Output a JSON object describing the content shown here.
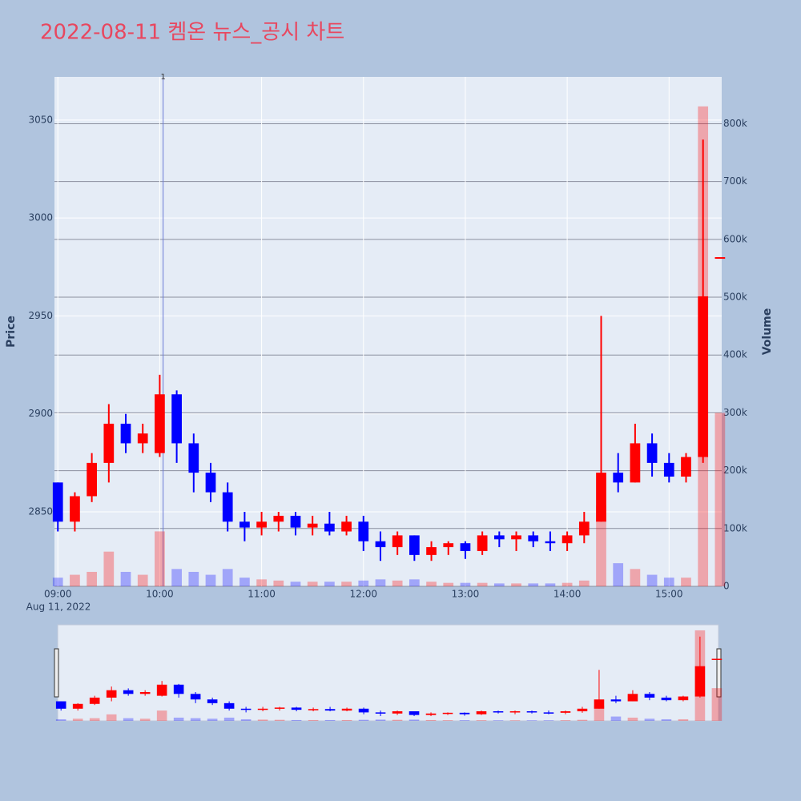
{
  "chart_data": {
    "type": "candlestick",
    "title": "2022-08-11 켐온 뉴스_공시 차트",
    "ylabel": "Price",
    "y2label": "Volume",
    "x_date_label": "Aug 11, 2022",
    "x": [
      "09:00",
      "09:10",
      "09:20",
      "09:30",
      "09:40",
      "09:50",
      "10:00",
      "10:10",
      "10:20",
      "10:30",
      "10:40",
      "10:50",
      "11:00",
      "11:10",
      "11:20",
      "11:30",
      "11:40",
      "11:50",
      "12:00",
      "12:10",
      "12:20",
      "12:30",
      "12:40",
      "12:50",
      "13:00",
      "13:10",
      "13:20",
      "13:30",
      "13:40",
      "13:50",
      "14:00",
      "14:10",
      "14:20",
      "14:30",
      "14:40",
      "14:50",
      "15:00",
      "15:10",
      "15:20",
      "15:30"
    ],
    "open": [
      2865,
      2845,
      2858,
      2875,
      2895,
      2885,
      2880,
      2910,
      2885,
      2870,
      2860,
      2845,
      2842,
      2845,
      2848,
      2842,
      2844,
      2840,
      2845,
      2835,
      2832,
      2838,
      2828,
      2832,
      2834,
      2830,
      2838,
      2836,
      2838,
      2835,
      2834,
      2838,
      2845,
      2870,
      2865,
      2885,
      2875,
      2868,
      2878,
      2980
    ],
    "high": [
      2865,
      2860,
      2880,
      2905,
      2900,
      2895,
      2920,
      2912,
      2890,
      2875,
      2865,
      2850,
      2850,
      2850,
      2850,
      2848,
      2850,
      2848,
      2848,
      2840,
      2840,
      2838,
      2835,
      2835,
      2835,
      2840,
      2840,
      2840,
      2840,
      2840,
      2840,
      2850,
      2950,
      2880,
      2895,
      2890,
      2880,
      2880,
      3040,
      2980
    ],
    "low": [
      2840,
      2840,
      2855,
      2865,
      2880,
      2880,
      2878,
      2875,
      2860,
      2855,
      2840,
      2835,
      2838,
      2840,
      2838,
      2838,
      2838,
      2838,
      2830,
      2825,
      2828,
      2825,
      2825,
      2828,
      2826,
      2828,
      2832,
      2830,
      2832,
      2830,
      2830,
      2834,
      2845,
      2860,
      2865,
      2868,
      2865,
      2865,
      2875,
      2980
    ],
    "close": [
      2845,
      2858,
      2875,
      2895,
      2885,
      2890,
      2910,
      2885,
      2870,
      2860,
      2845,
      2842,
      2845,
      2848,
      2842,
      2844,
      2840,
      2845,
      2835,
      2832,
      2838,
      2828,
      2832,
      2834,
      2830,
      2838,
      2836,
      2838,
      2835,
      2834,
      2838,
      2845,
      2870,
      2865,
      2885,
      2875,
      2868,
      2878,
      2960,
      2980
    ],
    "volume": [
      15000,
      20000,
      25000,
      60000,
      25000,
      20000,
      95000,
      30000,
      25000,
      20000,
      30000,
      15000,
      12000,
      10000,
      8000,
      8000,
      8000,
      8000,
      10000,
      12000,
      10000,
      12000,
      8000,
      6000,
      6000,
      6000,
      5000,
      5000,
      5000,
      5000,
      6000,
      10000,
      140000,
      40000,
      30000,
      20000,
      15000,
      15000,
      830000,
      300000
    ],
    "increasing_color": "#ff0000",
    "decreasing_color": "#0000ff",
    "xlim": [
      "08:58",
      "15:31"
    ],
    "xticks": [
      "09:00",
      "10:00",
      "11:00",
      "12:00",
      "13:00",
      "14:00",
      "15:00"
    ],
    "ylim": [
      2812,
      3072
    ],
    "yticks": [
      2850,
      2900,
      2950,
      3000,
      3050
    ],
    "y2lim": [
      0,
      881000
    ],
    "y2ticks": [
      0,
      {
        "value": 100000,
        "label": "100k"
      },
      {
        "value": 200000,
        "label": "200k"
      },
      {
        "value": 300000,
        "label": "300k"
      },
      {
        "value": 400000,
        "label": "400k"
      },
      {
        "value": 500000,
        "label": "500k"
      },
      {
        "value": 600000,
        "label": "600k"
      },
      {
        "value": 700000,
        "label": "700k"
      },
      {
        "value": 800000,
        "label": "800k"
      }
    ],
    "annotations": [
      {
        "x": "10:02",
        "text": "1"
      }
    ]
  }
}
